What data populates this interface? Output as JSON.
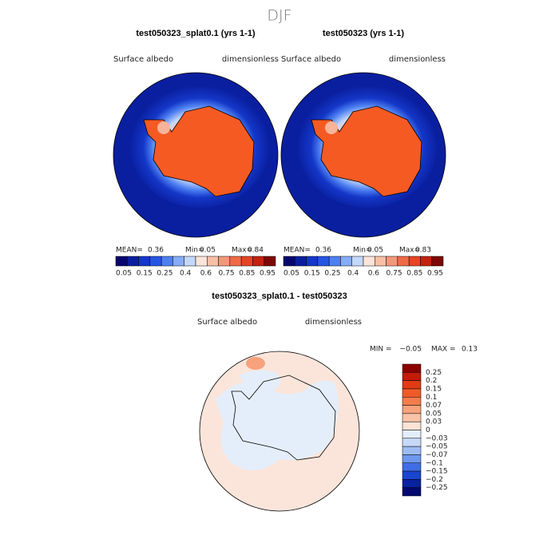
{
  "title": "DJF",
  "panels": [
    {
      "title": "test050323_splat0.1 (yrs 1-1)",
      "field": "Surface albedo",
      "units": "dimensionless",
      "stats": [
        "MEAN=",
        "0.36",
        "Min=",
        "0.05",
        "Max=",
        "0.84"
      ]
    },
    {
      "title": "test050323 (yrs 1-1)",
      "field": "Surface albedo",
      "units": "dimensionless",
      "stats": [
        "MEAN=",
        "0.36",
        "Min=",
        "0.05",
        "Max=",
        "0.83"
      ]
    }
  ],
  "colorbar": {
    "labels": [
      "0.05",
      "0.15",
      "0.25",
      "0.4",
      "0.6",
      "0.75",
      "0.85",
      "0.95"
    ],
    "colors": [
      "#06066e",
      "#0a1fa0",
      "#1437c8",
      "#2456e4",
      "#4d7ff2",
      "#86acf7",
      "#c4d8fb",
      "#fbe5da",
      "#f8bfa6",
      "#f5967a",
      "#f06a45",
      "#e84424",
      "#c4220f",
      "#7e0606"
    ]
  },
  "difference": {
    "title": "test050323_splat0.1 - test050323",
    "field": "Surface albedo",
    "units": "dimensionless",
    "stats": [
      "MIN =",
      "−0.05",
      "MAX =",
      "0.13"
    ],
    "colorbar": {
      "labels": [
        "0.25",
        "0.2",
        "0.15",
        "0.1",
        "0.07",
        "0.05",
        "0.03",
        "0",
        "−0.03",
        "−0.05",
        "−0.07",
        "−0.1",
        "−0.15",
        "−0.2",
        "−0.25"
      ],
      "colors": [
        "#8a0000",
        "#c41a0a",
        "#e23a14",
        "#f05a28",
        "#f47c4c",
        "#f7a27c",
        "#f9c3a8",
        "#fce3d4",
        "#e4eefb",
        "#c6d9f7",
        "#9dbcf3",
        "#6e98ee",
        "#3f6de6",
        "#1a45d0",
        "#0a22a0",
        "#040870"
      ]
    }
  }
}
